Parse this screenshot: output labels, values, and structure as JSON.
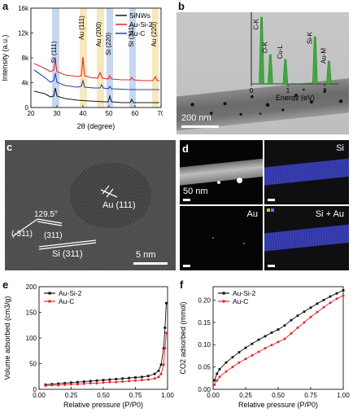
{
  "panels": {
    "a": {
      "label": "a"
    },
    "b": {
      "label": "b"
    },
    "c": {
      "label": "c"
    },
    "d": {
      "label": "d"
    },
    "e": {
      "label": "e"
    },
    "f": {
      "label": "f"
    }
  },
  "panel_b": {
    "scale": "200 nm",
    "eds_peaks": [
      "C-K",
      "O-K",
      "Cu-L",
      "Si-K",
      "Au-M"
    ],
    "inset_xlabel": "Energy (eV)",
    "inset_ticks": [
      "0",
      "1",
      "2"
    ]
  },
  "panel_c": {
    "angle": "129.5°",
    "plane_a": "(-311)",
    "plane_b": "(311)",
    "au_label": "Au (111)",
    "si_label": "Si (311)",
    "scale": "5 nm"
  },
  "panel_d": {
    "scale": "50 nm",
    "si": "Si",
    "au": "Au",
    "si_au": "Si + Au"
  },
  "chart_data": [
    {
      "type": "line",
      "title": "",
      "xlabel": "2θ (degree)",
      "ylabel": "Intensity (a.u.)",
      "xlim": [
        20,
        70
      ],
      "ylim": [
        0,
        16000
      ],
      "xticks": [
        "20",
        "30",
        "40",
        "50",
        "60",
        "70"
      ],
      "yticks": [
        "0",
        "4k",
        "8k",
        "12k",
        "16k"
      ],
      "legend_position": "top-right",
      "peak_annotations": [
        "Si (111)",
        "Au (111)",
        "Au (200)",
        "Si (220)",
        "Si (311)",
        "Au (220)"
      ],
      "series": [
        {
          "name": "SiNWs",
          "color": "#1a1a1a"
        },
        {
          "name": "Au-Si-2",
          "color": "#e8262a"
        },
        {
          "name": "Au-C",
          "color": "#2a3fa8"
        }
      ]
    },
    {
      "type": "line",
      "xlabel": "Relative pressure (P/P0)",
      "ylabel": "Volume adsorbed (cm3/g)",
      "xlim": [
        0,
        1.0
      ],
      "ylim": [
        0,
        200
      ],
      "xticks": [
        "0.00",
        "0.25",
        "0.50",
        "0.75",
        "1.00"
      ],
      "yticks": [
        "0",
        "50",
        "100",
        "150",
        "200"
      ],
      "legend_position": "top-left",
      "series": [
        {
          "name": "Au-Si-2",
          "color": "#111111",
          "x": [
            0.05,
            0.1,
            0.15,
            0.2,
            0.25,
            0.3,
            0.35,
            0.4,
            0.45,
            0.5,
            0.55,
            0.6,
            0.65,
            0.7,
            0.75,
            0.8,
            0.85,
            0.9,
            0.93,
            0.95,
            0.97,
            0.98,
            0.99
          ],
          "y": [
            9,
            10,
            11,
            12,
            13,
            14,
            15,
            16,
            17,
            18,
            19,
            20,
            21,
            22,
            23,
            24,
            26,
            30,
            36,
            48,
            80,
            120,
            168
          ]
        },
        {
          "name": "Au-C",
          "color": "#e8262a",
          "x": [
            0.05,
            0.1,
            0.15,
            0.2,
            0.25,
            0.3,
            0.35,
            0.4,
            0.45,
            0.5,
            0.55,
            0.6,
            0.65,
            0.7,
            0.75,
            0.8,
            0.85,
            0.9,
            0.93,
            0.95,
            0.97,
            0.98,
            0.99
          ],
          "y": [
            7,
            8,
            8,
            9,
            10,
            10,
            11,
            12,
            12,
            13,
            14,
            14,
            15,
            16,
            17,
            18,
            19,
            21,
            24,
            30,
            48,
            80,
            110
          ]
        }
      ]
    },
    {
      "type": "line",
      "xlabel": "Relative pressure (P/P0)",
      "ylabel": "CO2 adsorbed (mmol)",
      "xlim": [
        0,
        1.0
      ],
      "ylim": [
        0,
        0.23
      ],
      "xticks": [
        "0.00",
        "0.25",
        "0.50",
        "0.75",
        "1.00"
      ],
      "yticks": [
        "0.00",
        "0.05",
        "0.10",
        "0.15",
        "0.20"
      ],
      "legend_position": "top-left",
      "series": [
        {
          "name": "Au-Si-2",
          "color": "#111111",
          "x": [
            0.01,
            0.03,
            0.05,
            0.1,
            0.15,
            0.2,
            0.25,
            0.3,
            0.35,
            0.4,
            0.45,
            0.5,
            0.55,
            0.6,
            0.65,
            0.7,
            0.75,
            0.8,
            0.85,
            0.9,
            0.95,
            1.0
          ],
          "y": [
            0.02,
            0.035,
            0.045,
            0.06,
            0.072,
            0.083,
            0.093,
            0.102,
            0.111,
            0.119,
            0.127,
            0.134,
            0.143,
            0.155,
            0.165,
            0.174,
            0.183,
            0.192,
            0.2,
            0.208,
            0.215,
            0.222
          ]
        },
        {
          "name": "Au-C",
          "color": "#e8262a",
          "x": [
            0.01,
            0.03,
            0.05,
            0.1,
            0.15,
            0.2,
            0.25,
            0.3,
            0.35,
            0.4,
            0.45,
            0.5,
            0.55,
            0.6,
            0.65,
            0.7,
            0.75,
            0.8,
            0.85,
            0.9,
            0.95,
            1.0
          ],
          "y": [
            0.01,
            0.02,
            0.028,
            0.04,
            0.05,
            0.06,
            0.068,
            0.076,
            0.084,
            0.092,
            0.099,
            0.106,
            0.113,
            0.125,
            0.138,
            0.15,
            0.162,
            0.173,
            0.184,
            0.194,
            0.203,
            0.21
          ]
        }
      ]
    }
  ]
}
